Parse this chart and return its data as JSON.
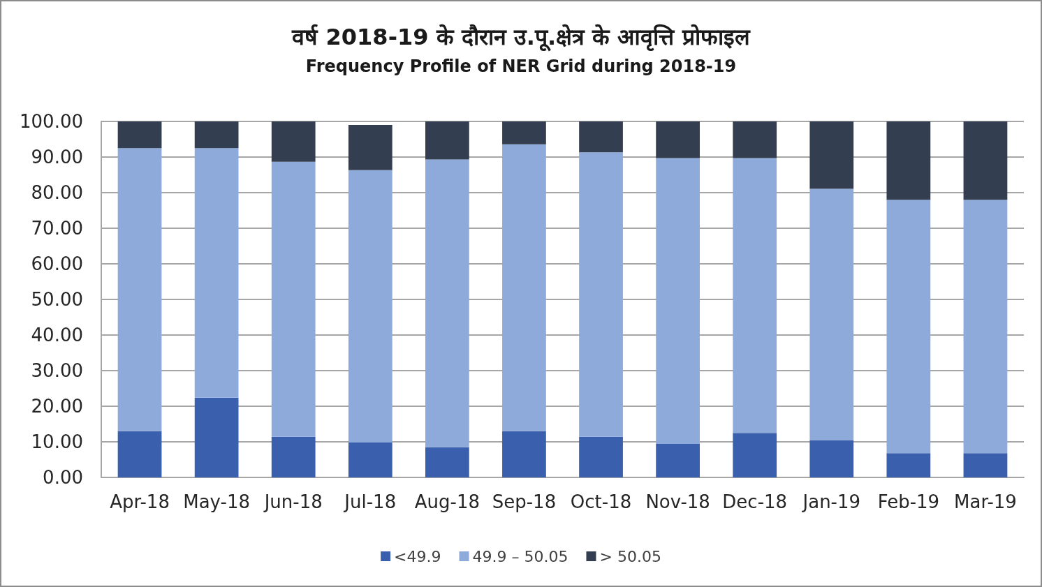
{
  "chart_data": {
    "type": "bar",
    "title": "वर्ष 2018-19 के दौरान उ.पू.क्षेत्र के आवृत्ति प्रोफाइल",
    "subtitle": "Frequency Profile of NER Grid during 2018-19",
    "categories": [
      "Apr-18",
      "May-18",
      "Jun-18",
      "Jul-18",
      "Aug-18",
      "Sep-18",
      "Oct-18",
      "Nov-18",
      "Dec-18",
      "Jan-19",
      "Feb-19",
      "Mar-19"
    ],
    "series": [
      {
        "name": "<49.9",
        "color": "#3a5fad",
        "values": [
          13.0,
          22.4,
          11.4,
          9.8,
          8.5,
          13.0,
          11.4,
          9.4,
          12.5,
          10.5,
          6.8,
          6.8
        ]
      },
      {
        "name": "49.9 – 50.05",
        "color": "#8eaadb",
        "values": [
          79.5,
          70.1,
          77.3,
          76.5,
          80.8,
          80.6,
          79.9,
          80.3,
          77.2,
          70.6,
          71.2,
          71.2
        ]
      },
      {
        "name": "> 50.05",
        "color": "#333f50",
        "values": [
          7.5,
          7.5,
          11.3,
          12.7,
          10.7,
          6.4,
          8.7,
          10.3,
          10.3,
          18.9,
          22.0,
          22.0
        ]
      }
    ],
    "stacked": true,
    "ylim": [
      0,
      100
    ],
    "yticks": [
      {
        "value": 0,
        "label": "0.00"
      },
      {
        "value": 10,
        "label": "10.00"
      },
      {
        "value": 20,
        "label": "20.00"
      },
      {
        "value": 30,
        "label": "30.00"
      },
      {
        "value": 40,
        "label": "40.00"
      },
      {
        "value": 50,
        "label": "50.00"
      },
      {
        "value": 60,
        "label": "60.00"
      },
      {
        "value": 70,
        "label": "70.00"
      },
      {
        "value": 80,
        "label": "80.00"
      },
      {
        "value": 90,
        "label": "90.00"
      },
      {
        "value": 100,
        "label": "100.00"
      }
    ],
    "grid": "y",
    "legend": "bottom"
  }
}
